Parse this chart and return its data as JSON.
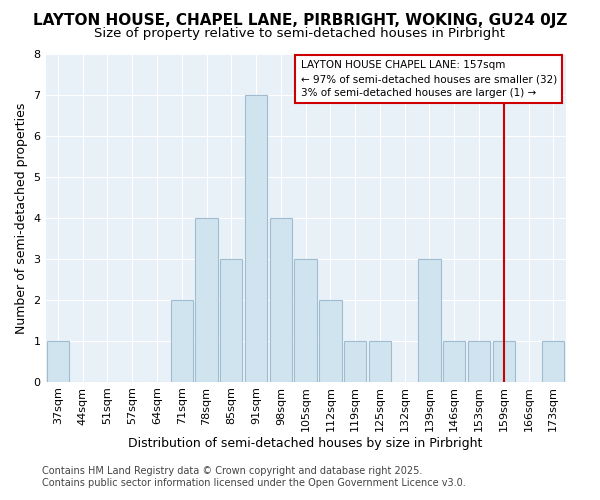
{
  "title_line1": "LAYTON HOUSE, CHAPEL LANE, PIRBRIGHT, WOKING, GU24 0JZ",
  "title_line2": "Size of property relative to semi-detached houses in Pirbright",
  "xlabel": "Distribution of semi-detached houses by size in Pirbright",
  "ylabel": "Number of semi-detached properties",
  "categories": [
    "37sqm",
    "44sqm",
    "51sqm",
    "57sqm",
    "64sqm",
    "71sqm",
    "78sqm",
    "85sqm",
    "91sqm",
    "98sqm",
    "105sqm",
    "112sqm",
    "119sqm",
    "125sqm",
    "132sqm",
    "139sqm",
    "146sqm",
    "153sqm",
    "159sqm",
    "166sqm",
    "173sqm"
  ],
  "values": [
    1,
    0,
    0,
    0,
    0,
    2,
    4,
    3,
    7,
    4,
    3,
    2,
    1,
    1,
    0,
    3,
    1,
    1,
    1,
    0,
    1
  ],
  "bar_color": "#d0e4f0",
  "bar_edge_color": "#a0bdd0",
  "ylim": [
    0,
    8
  ],
  "yticks": [
    0,
    1,
    2,
    3,
    4,
    5,
    6,
    7,
    8
  ],
  "red_line_index": 18,
  "annotation_title": "LAYTON HOUSE CHAPEL LANE: 157sqm",
  "annotation_line2": "← 97% of semi-detached houses are smaller (32)",
  "annotation_line3": "3% of semi-detached houses are larger (1) →",
  "annotation_box_color": "#ffffff",
  "annotation_box_edge": "#cc0000",
  "red_line_color": "#cc0000",
  "footer_line1": "Contains HM Land Registry data © Crown copyright and database right 2025.",
  "footer_line2": "Contains public sector information licensed under the Open Government Licence v3.0.",
  "bg_color": "#ffffff",
  "plot_bg_color": "#e8f0f8",
  "grid_color": "#ffffff",
  "title_fontsize": 11,
  "subtitle_fontsize": 9.5,
  "label_fontsize": 9,
  "tick_fontsize": 8,
  "footer_fontsize": 7
}
